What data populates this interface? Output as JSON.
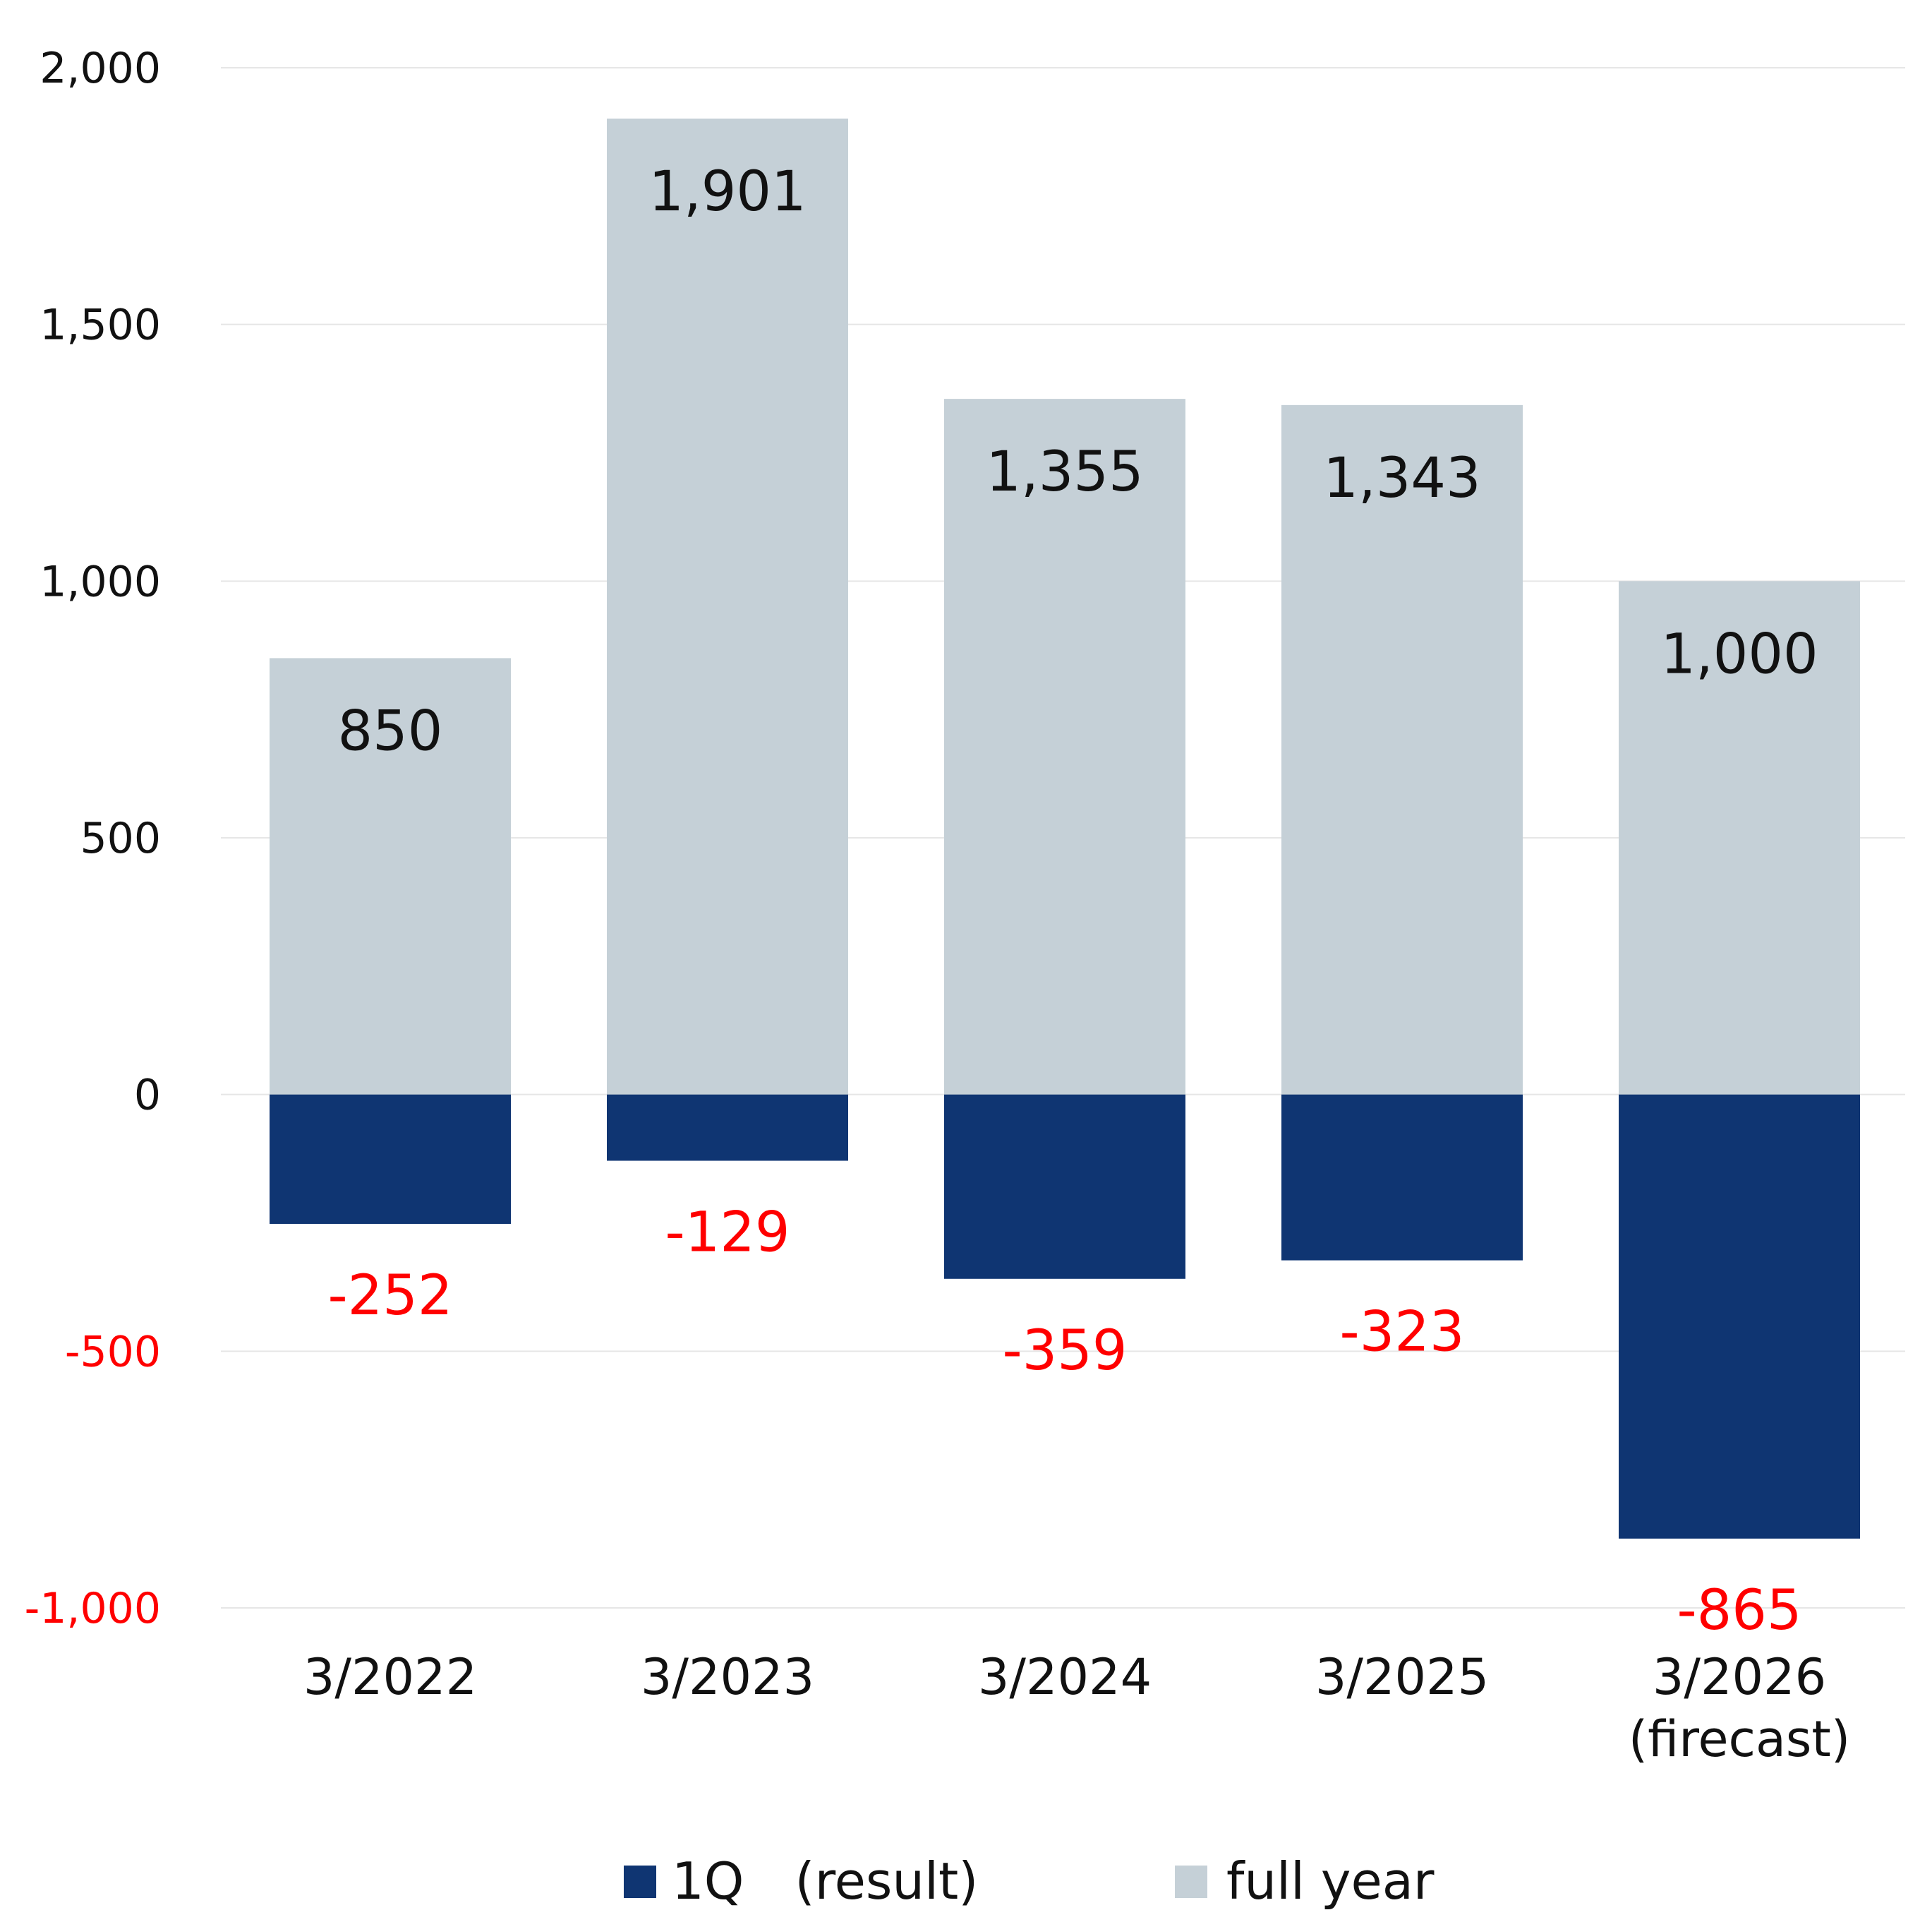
{
  "chart_data": {
    "type": "bar",
    "categories": [
      [
        "3/2022"
      ],
      [
        "3/2023"
      ],
      [
        "3/2024"
      ],
      [
        "3/2025"
      ],
      [
        "3/2026",
        "(firecast)"
      ]
    ],
    "series": [
      {
        "name": "1Q　(result)",
        "values": [
          -252,
          -129,
          -359,
          -323,
          -865
        ],
        "color": "#0f3572",
        "label_color": "#ff0000"
      },
      {
        "name": "full year",
        "values": [
          850,
          1901,
          1355,
          1343,
          1000
        ],
        "color": "#c5d0d7",
        "label_color": "#111111"
      }
    ],
    "data_labels": {
      "1Q": [
        "-252",
        "-129",
        "-359",
        "-323",
        "-865"
      ],
      "full_year": [
        "850",
        "1,901",
        "1,355",
        "1,343",
        "1,000"
      ]
    },
    "ylim": [
      -1000,
      2000
    ],
    "yticks": [
      2000,
      1500,
      1000,
      500,
      0,
      -500,
      -1000
    ],
    "ytick_labels": [
      "2,000",
      "1,500",
      "1,000",
      "500",
      "0",
      "-500",
      "-1,000"
    ],
    "ytick_colors": {
      "negative": "#ff0000",
      "positive": "#111111"
    },
    "grid": true,
    "grid_color": "#e6e6e6",
    "legend": "bottom-center",
    "title": "",
    "xlabel": "",
    "ylabel": ""
  }
}
